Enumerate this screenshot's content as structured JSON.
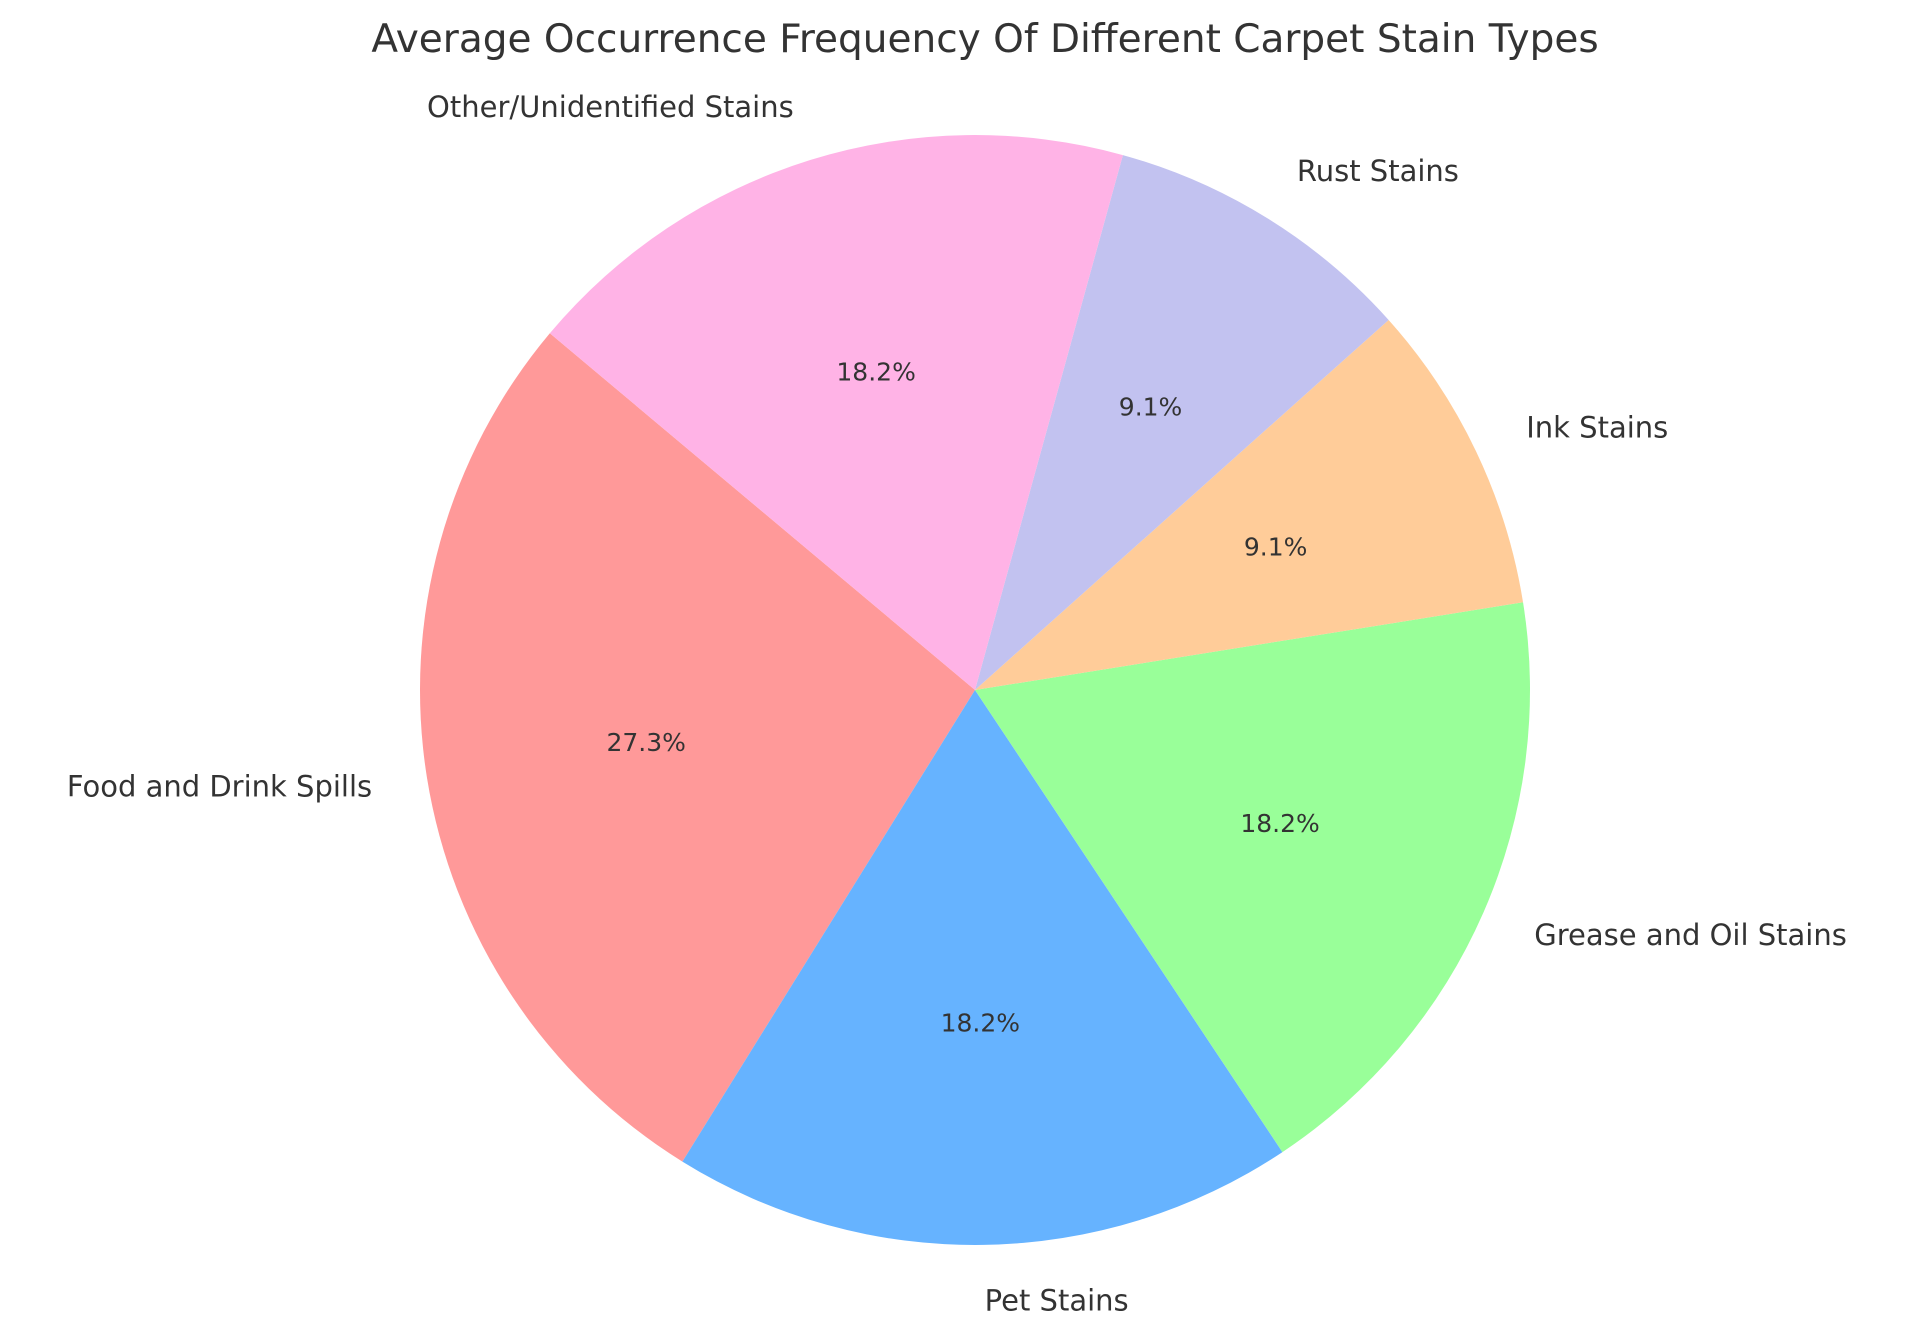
{
  "chart_data": {
    "type": "pie",
    "title": "Average Occurrence Frequency Of Different Carpet Stain Types",
    "slices": [
      {
        "label": "Food and Drink Spills",
        "value": 27.3,
        "pct_label": "27.3%",
        "color": "#ff9999"
      },
      {
        "label": "Pet Stains",
        "value": 18.2,
        "pct_label": "18.2%",
        "color": "#66b3ff"
      },
      {
        "label": "Grease and Oil Stains",
        "value": 18.2,
        "pct_label": "18.2%",
        "color": "#99ff99"
      },
      {
        "label": "Ink Stains",
        "value": 9.1,
        "pct_label": "9.1%",
        "color": "#ffcc99"
      },
      {
        "label": "Rust Stains",
        "value": 9.1,
        "pct_label": "9.1%",
        "color": "#c2c2f0"
      },
      {
        "label": "Other/Unidentified Stains",
        "value": 18.2,
        "pct_label": "18.2%",
        "color": "#ffb3e6"
      }
    ],
    "start_angle_deg": 140,
    "direction": "counterclockwise",
    "legend": "none",
    "grid": false
  }
}
